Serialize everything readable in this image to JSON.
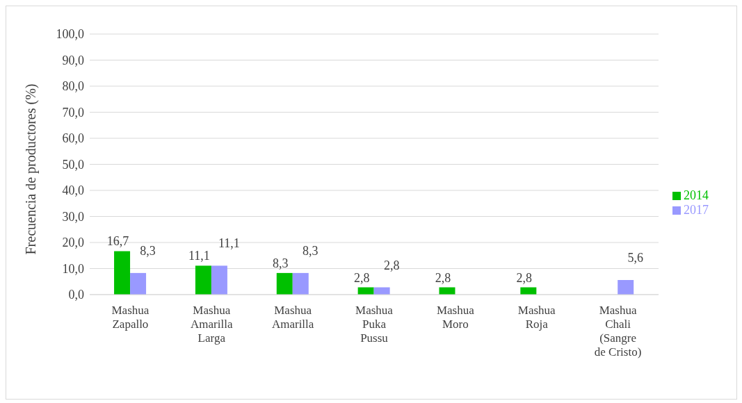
{
  "chart_data": {
    "type": "bar",
    "ylabel": "Frecuencia de productores (%)",
    "categories": [
      "Mashua\nZapallo",
      "Mashua\nAmarilla\nLarga",
      "Mashua\nAmarilla",
      "Mashua\nPuka\nPussu",
      "Mashua\nMoro",
      "Mashua\nRoja",
      "Mashua\nChali\n(Sangre\nde Cristo)"
    ],
    "series": [
      {
        "name": "2014",
        "color": "#00c000",
        "values": [
          16.7,
          11.1,
          8.3,
          2.8,
          2.8,
          2.8,
          null
        ],
        "value_labels": [
          "16,7",
          "11,1",
          "8,3",
          "2,8",
          "2,8",
          "2,8",
          null
        ]
      },
      {
        "name": "2017",
        "color": "#9999ff",
        "values": [
          8.3,
          11.1,
          8.3,
          2.8,
          null,
          null,
          5.6
        ],
        "value_labels": [
          "8,3",
          "11,1",
          "8,3",
          "2,8",
          null,
          null,
          "5,6"
        ]
      }
    ],
    "ylim": [
      0,
      100
    ],
    "yticks": [
      {
        "value": 0,
        "label": "0,0"
      },
      {
        "value": 10,
        "label": "10,0"
      },
      {
        "value": 20,
        "label": "20,0"
      },
      {
        "value": 30,
        "label": "30,0"
      },
      {
        "value": 40,
        "label": "40,0"
      },
      {
        "value": 50,
        "label": "50,0"
      },
      {
        "value": 60,
        "label": "60,0"
      },
      {
        "value": 70,
        "label": "70,0"
      },
      {
        "value": 80,
        "label": "80,0"
      },
      {
        "value": 90,
        "label": "90,0"
      },
      {
        "value": 100,
        "label": "100,0"
      }
    ],
    "grid": "y",
    "legend": "right"
  }
}
